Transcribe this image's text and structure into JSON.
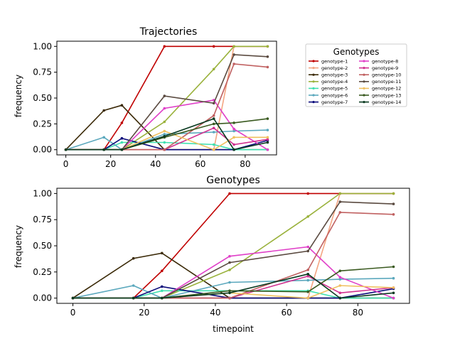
{
  "chart_data": [
    {
      "type": "line",
      "title": "Trajectories",
      "xlabel": "",
      "ylabel": "frequency",
      "xlim": [
        -4,
        94
      ],
      "ylim": [
        -0.05,
        1.05
      ],
      "xticks": [
        0,
        20,
        40,
        60,
        80
      ],
      "yticks": [
        0.0,
        0.25,
        0.5,
        0.75,
        1.0
      ],
      "xtick_labels": [
        "0",
        "20",
        "40",
        "60",
        "80"
      ],
      "ytick_labels": [
        "0.00",
        "0.25",
        "0.50",
        "0.75",
        "1.00"
      ],
      "grid": false,
      "series": [
        {
          "name": "genotype-1",
          "color": "#c00000",
          "x": [
            0,
            17,
            25,
            44,
            66,
            75,
            90
          ],
          "y": [
            0,
            0,
            0.26,
            1,
            1,
            1,
            1
          ]
        },
        {
          "name": "genotype-2",
          "color": "#f4a582",
          "x": [
            0,
            17,
            25,
            44,
            66,
            75,
            90
          ],
          "y": [
            0,
            0,
            0,
            0,
            0,
            1,
            1
          ]
        },
        {
          "name": "genotype-3",
          "color": "#3b2a08",
          "x": [
            0,
            17,
            25,
            44,
            66,
            75,
            90
          ],
          "y": [
            0,
            0.38,
            0.43,
            0,
            0,
            0,
            0
          ]
        },
        {
          "name": "genotype-4",
          "color": "#9ab23c",
          "x": [
            0,
            17,
            25,
            44,
            66,
            75,
            90
          ],
          "y": [
            0,
            0,
            0,
            0.27,
            0.78,
            1,
            1
          ]
        },
        {
          "name": "genotype-5",
          "color": "#40e0b0",
          "x": [
            0,
            17,
            25,
            44,
            66,
            75,
            90
          ],
          "y": [
            0,
            0,
            0.07,
            0.07,
            0.05,
            0,
            0
          ]
        },
        {
          "name": "genotype-6",
          "color": "#5ba8bd",
          "x": [
            0,
            17,
            25,
            44,
            66,
            75,
            90
          ],
          "y": [
            0,
            0.12,
            0,
            0.15,
            0.17,
            0.18,
            0.19
          ]
        },
        {
          "name": "genotype-7",
          "color": "#0a0a7a",
          "x": [
            0,
            17,
            25,
            44,
            66,
            75,
            90
          ],
          "y": [
            0,
            0,
            0.11,
            0,
            0,
            0,
            0.09
          ]
        },
        {
          "name": "genotype-8",
          "color": "#e040c8",
          "x": [
            0,
            17,
            25,
            44,
            66,
            75,
            90
          ],
          "y": [
            0,
            0,
            0,
            0.4,
            0.48,
            0.2,
            0
          ]
        },
        {
          "name": "genotype-9",
          "color": "#d03090",
          "x": [
            0,
            17,
            25,
            44,
            66,
            75,
            90
          ],
          "y": [
            0,
            0,
            0,
            0,
            0.21,
            0.05,
            0.1
          ]
        },
        {
          "name": "genotype-10",
          "color": "#c06060",
          "x": [
            0,
            17,
            25,
            44,
            66,
            75,
            90
          ],
          "y": [
            0,
            0,
            0,
            0,
            0.33,
            0.83,
            0.8
          ]
        },
        {
          "name": "genotype-11",
          "color": "#5a4a40",
          "x": [
            0,
            17,
            25,
            44,
            66,
            75,
            90
          ],
          "y": [
            0,
            0,
            0,
            0.52,
            0.45,
            0.92,
            0.9
          ]
        },
        {
          "name": "genotype-12",
          "color": "#f0c060",
          "x": [
            0,
            17,
            25,
            44,
            66,
            75,
            90
          ],
          "y": [
            0,
            0,
            0,
            0.18,
            0,
            0.12,
            0.12
          ]
        },
        {
          "name": "genotype-13",
          "color": "#3a5a20",
          "x": [
            0,
            17,
            25,
            44,
            66,
            75,
            90
          ],
          "y": [
            0,
            0,
            0,
            0.12,
            0.25,
            0.26,
            0.3
          ]
        },
        {
          "name": "genotype-14",
          "color": "#0a3a20",
          "x": [
            0,
            17,
            25,
            44,
            66,
            75,
            90
          ],
          "y": [
            0,
            0,
            0,
            0.13,
            0.3,
            0,
            0.07
          ]
        }
      ]
    },
    {
      "type": "line",
      "title": "Genotypes",
      "xlabel": "timepoint",
      "ylabel": "frequency",
      "xlim": [
        -4.5,
        94.5
      ],
      "ylim": [
        -0.05,
        1.05
      ],
      "xticks": [
        0,
        20,
        40,
        60,
        80
      ],
      "yticks": [
        0.0,
        0.25,
        0.5,
        0.75,
        1.0
      ],
      "xtick_labels": [
        "0",
        "20",
        "40",
        "60",
        "80"
      ],
      "ytick_labels": [
        "0.00",
        "0.25",
        "0.50",
        "0.75",
        "1.00"
      ],
      "grid": false,
      "series": [
        {
          "name": "genotype-1",
          "color": "#c00000",
          "x": [
            0,
            17,
            25,
            44,
            66,
            75,
            90
          ],
          "y": [
            0,
            0,
            0.26,
            1,
            1,
            1,
            1
          ]
        },
        {
          "name": "genotype-2",
          "color": "#f4a582",
          "x": [
            0,
            17,
            25,
            44,
            66,
            75,
            90
          ],
          "y": [
            0,
            0,
            0,
            0,
            0,
            1,
            1
          ]
        },
        {
          "name": "genotype-3",
          "color": "#3b2a08",
          "x": [
            0,
            17,
            25,
            44,
            66,
            75,
            90
          ],
          "y": [
            0,
            0.38,
            0.43,
            0,
            0,
            0,
            0
          ]
        },
        {
          "name": "genotype-4",
          "color": "#9ab23c",
          "x": [
            0,
            17,
            25,
            44,
            66,
            75,
            90
          ],
          "y": [
            0,
            0,
            0,
            0.27,
            0.78,
            1,
            1
          ]
        },
        {
          "name": "genotype-5",
          "color": "#40e0b0",
          "x": [
            0,
            17,
            25,
            44,
            66,
            75,
            90
          ],
          "y": [
            0,
            0,
            0.07,
            0.07,
            0.07,
            0,
            0
          ]
        },
        {
          "name": "genotype-6",
          "color": "#5ba8bd",
          "x": [
            0,
            17,
            25,
            44,
            66,
            75,
            90
          ],
          "y": [
            0,
            0.12,
            0,
            0.15,
            0.17,
            0.18,
            0.19
          ]
        },
        {
          "name": "genotype-7",
          "color": "#0a0a7a",
          "x": [
            0,
            17,
            25,
            44,
            66,
            75,
            90
          ],
          "y": [
            0,
            0,
            0.11,
            0,
            0,
            0,
            0.09
          ]
        },
        {
          "name": "genotype-8",
          "color": "#e040c8",
          "x": [
            0,
            17,
            25,
            44,
            66,
            75,
            90
          ],
          "y": [
            0,
            0,
            0,
            0.4,
            0.49,
            0.2,
            0
          ]
        },
        {
          "name": "genotype-9",
          "color": "#d03090",
          "x": [
            0,
            17,
            25,
            44,
            66,
            75,
            90
          ],
          "y": [
            0,
            0,
            0,
            0,
            0.21,
            0.05,
            0.1
          ]
        },
        {
          "name": "genotype-10",
          "color": "#c06060",
          "x": [
            0,
            17,
            25,
            44,
            66,
            75,
            90
          ],
          "y": [
            0,
            0,
            0,
            0,
            0.27,
            0.82,
            0.8
          ]
        },
        {
          "name": "genotype-11",
          "color": "#5a4a40",
          "x": [
            0,
            17,
            25,
            44,
            66,
            75,
            90
          ],
          "y": [
            0,
            0,
            0,
            0.34,
            0.45,
            0.92,
            0.9
          ]
        },
        {
          "name": "genotype-12",
          "color": "#f0c060",
          "x": [
            0,
            17,
            25,
            44,
            66,
            75,
            90
          ],
          "y": [
            0,
            0,
            0,
            0.05,
            0,
            0.12,
            0.1
          ]
        },
        {
          "name": "genotype-13",
          "color": "#3a5a20",
          "x": [
            0,
            17,
            25,
            44,
            66,
            75,
            90
          ],
          "y": [
            0,
            0,
            0,
            0.07,
            0.06,
            0.26,
            0.3
          ]
        },
        {
          "name": "genotype-14",
          "color": "#0a3a20",
          "x": [
            0,
            17,
            25,
            44,
            66,
            75,
            90
          ],
          "y": [
            0,
            0,
            0,
            0.05,
            0.23,
            0,
            0.05
          ]
        }
      ]
    }
  ],
  "legend": {
    "title": "Genotypes",
    "placement": "right of top chart",
    "entries": [
      {
        "label": "genotype-1",
        "color": "#c00000"
      },
      {
        "label": "genotype-2",
        "color": "#f4a582"
      },
      {
        "label": "genotype-3",
        "color": "#3b2a08"
      },
      {
        "label": "genotype-4",
        "color": "#9ab23c"
      },
      {
        "label": "genotype-5",
        "color": "#40e0b0"
      },
      {
        "label": "genotype-6",
        "color": "#5ba8bd"
      },
      {
        "label": "genotype-7",
        "color": "#0a0a7a"
      },
      {
        "label": "genotype-8",
        "color": "#e040c8"
      },
      {
        "label": "genotype-9",
        "color": "#d03090"
      },
      {
        "label": "genotype-10",
        "color": "#c06060"
      },
      {
        "label": "genotype-11",
        "color": "#5a4a40"
      },
      {
        "label": "genotype-12",
        "color": "#f0c060"
      },
      {
        "label": "genotype-13",
        "color": "#3a5a20"
      },
      {
        "label": "genotype-14",
        "color": "#0a3a20"
      }
    ]
  }
}
